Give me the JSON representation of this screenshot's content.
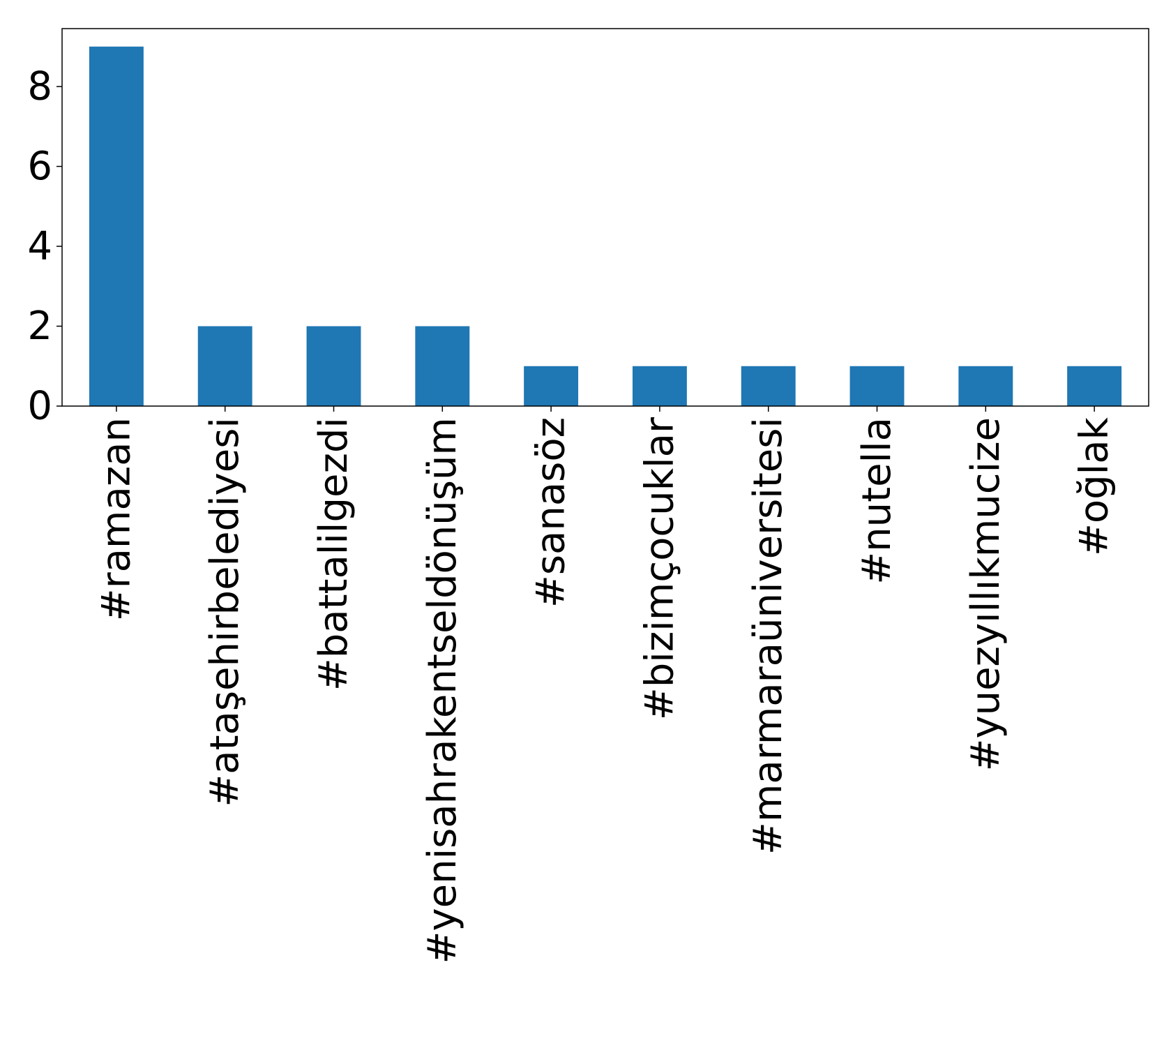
{
  "chart_data": {
    "type": "bar",
    "categories": [
      "#ramazan",
      "#ataşehirbelediyesi",
      "#battalilgezdi",
      "#yenisahrakentseldönüşüm",
      "#sanasöz",
      "#bizimçocuklar",
      "#marmaraüniversitesi",
      "#nutella",
      "#yuezyıllıkmucize",
      "#oğlak"
    ],
    "values": [
      9,
      2,
      2,
      2,
      1,
      1,
      1,
      1,
      1,
      1
    ],
    "color": "#1f77b4",
    "ylim": [
      0,
      9.45
    ],
    "yticks": [
      0,
      2,
      4,
      6,
      8
    ],
    "grid": false
  }
}
